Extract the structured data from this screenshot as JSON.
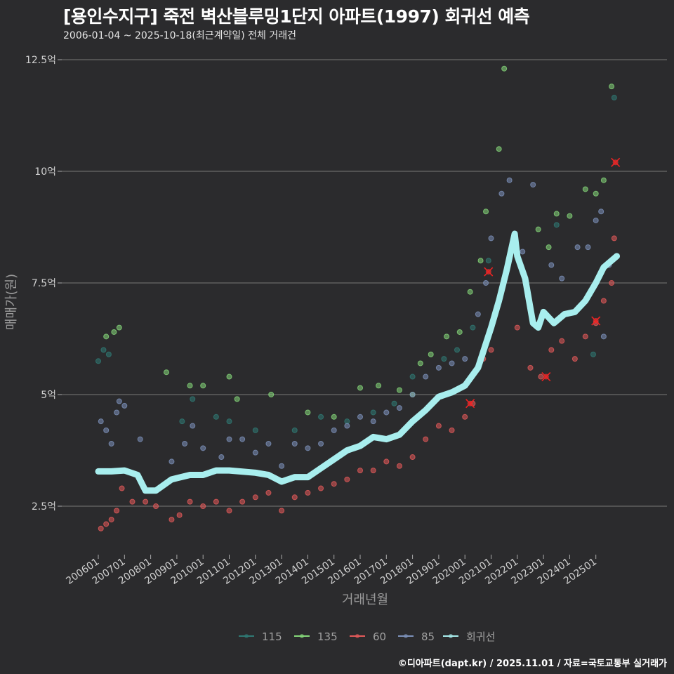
{
  "title": "[용인수지구] 죽전 벽산블루밍1단지 아파트(1997) 회귀선 예측",
  "subtitle": "2006-01-04 ~ 2025-10-18(최근계약일) 전체 거래건",
  "caption": "©디아파트(dapt.kr) / 2025.11.01 / 자료=국토교통부 실거래가",
  "chart_data": {
    "type": "scatter",
    "xlabel": "거래년월",
    "ylabel": "매매가(원)",
    "xlim": [
      2005.6,
      2026.5
    ],
    "ylim": [
      1.5,
      13.0
    ],
    "x_ticks": [
      "200601",
      "200701",
      "200801",
      "200901",
      "201001",
      "201101",
      "201201",
      "201301",
      "201401",
      "201501",
      "201601",
      "201701",
      "201801",
      "201901",
      "202001",
      "202101",
      "202201",
      "202301",
      "202401",
      "202501"
    ],
    "x_tick_values": [
      2006,
      2007,
      2008,
      2009,
      2010,
      2011,
      2012,
      2013,
      2014,
      2015,
      2016,
      2017,
      2018,
      2019,
      2020,
      2021,
      2022,
      2023,
      2024,
      2025
    ],
    "y_ticks": [
      {
        "v": 2.5,
        "label": "2.5억"
      },
      {
        "v": 5,
        "label": "5억"
      },
      {
        "v": 7.5,
        "label": "7.5억"
      },
      {
        "v": 10,
        "label": "10억"
      },
      {
        "v": 12.5,
        "label": "12.5억"
      }
    ],
    "grid": true,
    "legend_position": "bottom",
    "series": [
      {
        "name": "115",
        "color": "#2f7a74",
        "points": [
          [
            2006.0,
            5.75
          ],
          [
            2006.2,
            6.0
          ],
          [
            2006.4,
            5.9
          ],
          [
            2009.2,
            4.4
          ],
          [
            2009.6,
            4.9
          ],
          [
            2010.5,
            4.5
          ],
          [
            2011.0,
            4.4
          ],
          [
            2012.0,
            4.2
          ],
          [
            2013.5,
            4.2
          ],
          [
            2014.5,
            4.5
          ],
          [
            2015.5,
            4.4
          ],
          [
            2016.5,
            4.6
          ],
          [
            2017.3,
            4.8
          ],
          [
            2018.0,
            5.4
          ],
          [
            2019.2,
            5.8
          ],
          [
            2019.7,
            6.0
          ],
          [
            2020.3,
            6.5
          ],
          [
            2020.9,
            8.0
          ],
          [
            2023.5,
            8.8
          ],
          [
            2024.9,
            5.9
          ],
          [
            2025.7,
            11.65
          ]
        ]
      },
      {
        "name": "135",
        "color": "#86d97a",
        "points": [
          [
            2006.3,
            6.3
          ],
          [
            2006.6,
            6.4
          ],
          [
            2006.8,
            6.5
          ],
          [
            2008.6,
            5.5
          ],
          [
            2009.5,
            5.2
          ],
          [
            2010.0,
            5.2
          ],
          [
            2011.0,
            5.4
          ],
          [
            2011.3,
            4.9
          ],
          [
            2012.6,
            5.0
          ],
          [
            2014.0,
            4.6
          ],
          [
            2015.0,
            4.5
          ],
          [
            2016.0,
            5.15
          ],
          [
            2016.7,
            5.2
          ],
          [
            2017.5,
            5.1
          ],
          [
            2018.0,
            5.0
          ],
          [
            2018.3,
            5.7
          ],
          [
            2018.7,
            5.9
          ],
          [
            2019.3,
            6.3
          ],
          [
            2019.8,
            6.4
          ],
          [
            2020.2,
            7.3
          ],
          [
            2020.6,
            8.0
          ],
          [
            2020.8,
            9.1
          ],
          [
            2021.3,
            10.5
          ],
          [
            2021.5,
            12.3
          ],
          [
            2022.8,
            8.7
          ],
          [
            2023.2,
            8.3
          ],
          [
            2023.5,
            9.05
          ],
          [
            2024.0,
            9.0
          ],
          [
            2024.6,
            9.6
          ],
          [
            2025.0,
            9.5
          ],
          [
            2025.3,
            9.8
          ],
          [
            2025.6,
            11.9
          ]
        ]
      },
      {
        "name": "60",
        "color": "#e55a5a",
        "points": [
          [
            2006.1,
            2.0
          ],
          [
            2006.3,
            2.1
          ],
          [
            2006.5,
            2.2
          ],
          [
            2006.7,
            2.4
          ],
          [
            2006.9,
            2.9
          ],
          [
            2007.3,
            2.6
          ],
          [
            2007.8,
            2.6
          ],
          [
            2008.2,
            2.5
          ],
          [
            2008.8,
            2.2
          ],
          [
            2009.1,
            2.3
          ],
          [
            2009.5,
            2.6
          ],
          [
            2010.0,
            2.5
          ],
          [
            2010.5,
            2.6
          ],
          [
            2011.0,
            2.4
          ],
          [
            2011.5,
            2.6
          ],
          [
            2012.0,
            2.7
          ],
          [
            2012.5,
            2.8
          ],
          [
            2013.0,
            2.4
          ],
          [
            2013.5,
            2.7
          ],
          [
            2014.0,
            2.8
          ],
          [
            2014.5,
            2.9
          ],
          [
            2015.0,
            3.0
          ],
          [
            2015.5,
            3.1
          ],
          [
            2016.0,
            3.3
          ],
          [
            2016.5,
            3.3
          ],
          [
            2017.0,
            3.5
          ],
          [
            2017.5,
            3.4
          ],
          [
            2018.0,
            3.6
          ],
          [
            2018.5,
            4.0
          ],
          [
            2019.0,
            4.3
          ],
          [
            2019.5,
            4.2
          ],
          [
            2020.0,
            4.5
          ],
          [
            2020.3,
            4.8
          ],
          [
            2020.7,
            5.8
          ],
          [
            2021.0,
            6.0
          ],
          [
            2021.5,
            7.6
          ],
          [
            2022.0,
            6.5
          ],
          [
            2022.5,
            5.6
          ],
          [
            2022.9,
            5.4
          ],
          [
            2023.3,
            6.0
          ],
          [
            2023.7,
            6.2
          ],
          [
            2024.2,
            5.8
          ],
          [
            2024.6,
            6.3
          ],
          [
            2025.0,
            6.6
          ],
          [
            2025.3,
            7.1
          ],
          [
            2025.6,
            7.5
          ],
          [
            2025.7,
            8.5
          ]
        ]
      },
      {
        "name": "85",
        "color": "#7d92bb",
        "points": [
          [
            2006.1,
            4.4
          ],
          [
            2006.3,
            4.2
          ],
          [
            2006.5,
            3.9
          ],
          [
            2006.7,
            4.6
          ],
          [
            2006.8,
            4.85
          ],
          [
            2007.0,
            4.75
          ],
          [
            2007.6,
            4.0
          ],
          [
            2008.8,
            3.5
          ],
          [
            2009.3,
            3.9
          ],
          [
            2009.6,
            4.3
          ],
          [
            2010.0,
            3.8
          ],
          [
            2010.7,
            3.6
          ],
          [
            2011.0,
            4.0
          ],
          [
            2011.5,
            4.0
          ],
          [
            2012.0,
            3.7
          ],
          [
            2012.5,
            3.9
          ],
          [
            2013.0,
            3.4
          ],
          [
            2013.5,
            3.9
          ],
          [
            2014.0,
            3.8
          ],
          [
            2014.5,
            3.9
          ],
          [
            2015.0,
            4.2
          ],
          [
            2015.5,
            4.3
          ],
          [
            2016.0,
            4.5
          ],
          [
            2016.5,
            4.4
          ],
          [
            2017.0,
            4.6
          ],
          [
            2017.5,
            4.7
          ],
          [
            2018.0,
            5.0
          ],
          [
            2018.5,
            5.4
          ],
          [
            2019.0,
            5.6
          ],
          [
            2019.5,
            5.7
          ],
          [
            2020.0,
            5.8
          ],
          [
            2020.5,
            6.8
          ],
          [
            2020.8,
            7.5
          ],
          [
            2021.0,
            8.5
          ],
          [
            2021.4,
            9.5
          ],
          [
            2021.7,
            9.8
          ],
          [
            2022.2,
            8.2
          ],
          [
            2022.6,
            9.7
          ],
          [
            2023.3,
            7.9
          ],
          [
            2023.7,
            7.6
          ],
          [
            2024.3,
            8.3
          ],
          [
            2024.7,
            8.3
          ],
          [
            2025.0,
            8.9
          ],
          [
            2025.2,
            9.1
          ],
          [
            2025.3,
            6.3
          ],
          [
            2025.5,
            7.9
          ]
        ]
      }
    ],
    "highlighted_points": [
      [
        2020.2,
        4.8
      ],
      [
        2020.9,
        7.75
      ],
      [
        2023.1,
        5.4
      ],
      [
        2025.0,
        6.65
      ],
      [
        2025.75,
        10.2
      ]
    ],
    "regression": {
      "name": "회귀선",
      "color": "#a8eeee",
      "points": [
        [
          2006.0,
          3.28
        ],
        [
          2006.5,
          3.28
        ],
        [
          2007.0,
          3.3
        ],
        [
          2007.5,
          3.2
        ],
        [
          2007.8,
          2.85
        ],
        [
          2008.2,
          2.85
        ],
        [
          2008.8,
          3.1
        ],
        [
          2009.5,
          3.2
        ],
        [
          2010.0,
          3.2
        ],
        [
          2010.5,
          3.3
        ],
        [
          2011.0,
          3.3
        ],
        [
          2012.0,
          3.25
        ],
        [
          2012.5,
          3.2
        ],
        [
          2013.0,
          3.05
        ],
        [
          2013.5,
          3.15
        ],
        [
          2014.0,
          3.15
        ],
        [
          2014.5,
          3.35
        ],
        [
          2015.0,
          3.55
        ],
        [
          2015.5,
          3.75
        ],
        [
          2016.0,
          3.85
        ],
        [
          2016.5,
          4.05
        ],
        [
          2017.0,
          4.0
        ],
        [
          2017.5,
          4.1
        ],
        [
          2018.0,
          4.4
        ],
        [
          2018.5,
          4.65
        ],
        [
          2019.0,
          4.95
        ],
        [
          2019.5,
          5.05
        ],
        [
          2020.0,
          5.2
        ],
        [
          2020.5,
          5.6
        ],
        [
          2021.0,
          6.5
        ],
        [
          2021.3,
          7.1
        ],
        [
          2021.6,
          7.8
        ],
        [
          2021.9,
          8.6
        ],
        [
          2022.0,
          8.1
        ],
        [
          2022.3,
          7.6
        ],
        [
          2022.6,
          6.6
        ],
        [
          2022.8,
          6.5
        ],
        [
          2023.0,
          6.85
        ],
        [
          2023.4,
          6.6
        ],
        [
          2023.8,
          6.8
        ],
        [
          2024.2,
          6.85
        ],
        [
          2024.6,
          7.1
        ],
        [
          2025.0,
          7.5
        ],
        [
          2025.3,
          7.85
        ],
        [
          2025.8,
          8.1
        ]
      ]
    }
  }
}
